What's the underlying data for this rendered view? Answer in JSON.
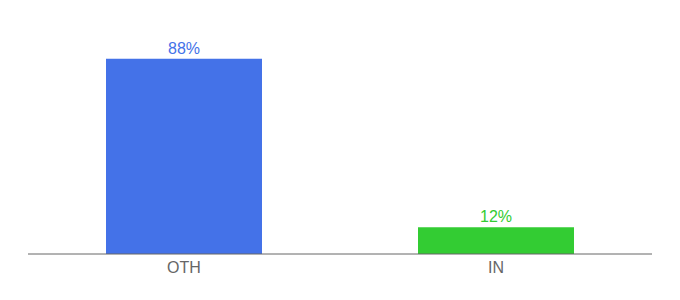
{
  "chart_data": {
    "type": "bar",
    "categories": [
      "OTH",
      "IN"
    ],
    "values": [
      88,
      12
    ],
    "value_labels": [
      "88%",
      "12%"
    ],
    "colors": [
      "#4472e8",
      "#33cc33"
    ],
    "ylim": [
      0,
      100
    ],
    "data_labels": true,
    "tick_labels": "x"
  }
}
